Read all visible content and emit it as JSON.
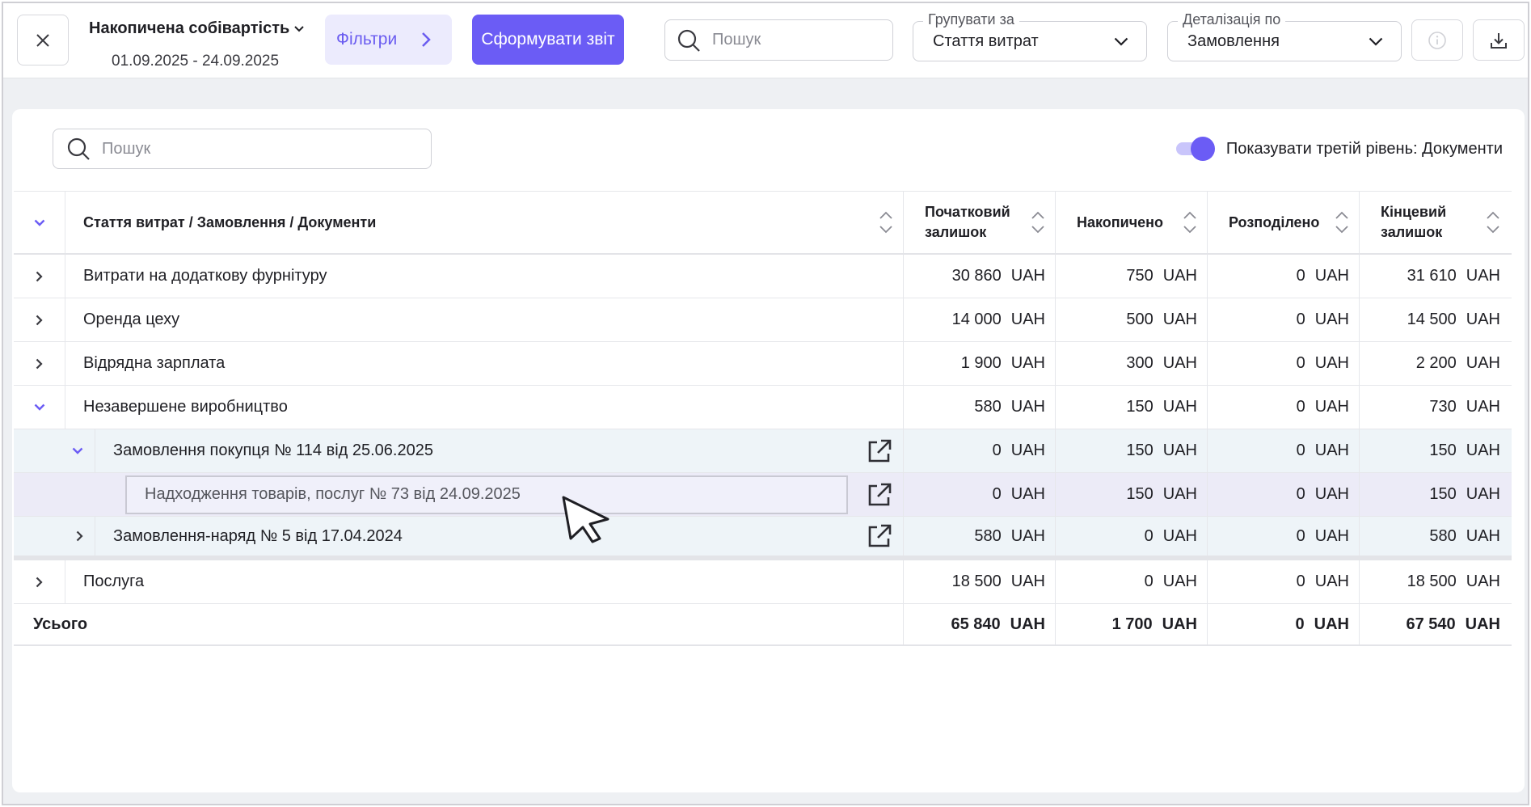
{
  "header": {
    "report_title": "Накопичена собівартість",
    "period": "01.09.2025 - 24.09.2025",
    "filters_label": "Фільтри",
    "generate_label": "Сформувати звіт",
    "search_placeholder": "Пошук",
    "group_by_legend": "Групувати за",
    "group_by_value": "Стаття витрат",
    "detail_legend": "Деталізація по",
    "detail_value": "Замовлення"
  },
  "toolbar": {
    "search_placeholder": "Пошук",
    "toggle_label": "Показувати третій рівень: Документи",
    "toggle_on": true
  },
  "table": {
    "columns": [
      "Стаття витрат / Замовлення / Документи",
      "Початковий залишок",
      "Накопичено",
      "Розподілено",
      "Кінцевий залишок"
    ],
    "currency": "UAH",
    "rows": [
      {
        "name": "Витрати на додаткову фурнітуру",
        "v": [
          "30 860",
          "750",
          "0",
          "31 610"
        ]
      },
      {
        "name": "Оренда цеху",
        "v": [
          "14 000",
          "500",
          "0",
          "14 500"
        ]
      },
      {
        "name": "Відрядна зарплата",
        "v": [
          "1 900",
          "300",
          "0",
          "2 200"
        ]
      },
      {
        "name": "Незавершене виробництво",
        "v": [
          "580",
          "150",
          "0",
          "730"
        ]
      },
      {
        "name": "Замовлення покупця № 114 від 25.06.2025",
        "v": [
          "0",
          "150",
          "0",
          "150"
        ]
      },
      {
        "name": "Надходження товарів, послуг № 73 від 24.09.2025",
        "v": [
          "0",
          "150",
          "0",
          "150"
        ]
      },
      {
        "name": "Замовлення-наряд № 5 від 17.04.2024",
        "v": [
          "580",
          "0",
          "0",
          "580"
        ]
      },
      {
        "name": "Послуга",
        "v": [
          "18 500",
          "0",
          "0",
          "18 500"
        ]
      }
    ],
    "total": {
      "label": "Усього",
      "v": [
        "65 840",
        "1 700",
        "0",
        "67 540"
      ]
    }
  },
  "colors": {
    "accent": "#6b5cf5",
    "accent_light": "#ecebfd"
  }
}
